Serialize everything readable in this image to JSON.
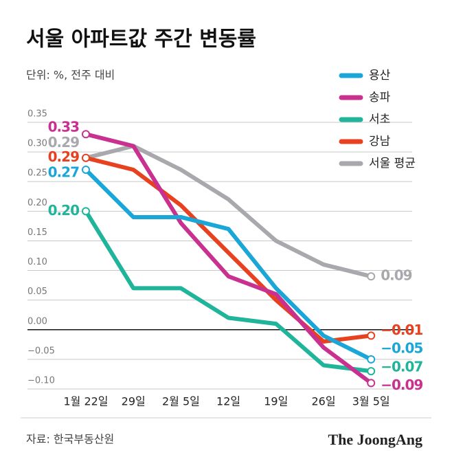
{
  "chart_data": {
    "type": "line",
    "title": "서울 아파트값 주간 변동률",
    "subtitle": "단위: %, 전주 대비",
    "source": "자료: 한국부동산원",
    "brand": "The JoongAng",
    "categories": [
      "1월 22일",
      "29일",
      "2월 5일",
      "12일",
      "19일",
      "26일",
      "3월 5일"
    ],
    "ylim": [
      -0.1,
      0.35
    ],
    "yticks": [
      {
        "value": -0.1,
        "label": "−0.10"
      },
      {
        "value": -0.05,
        "label": "−0.05"
      },
      {
        "value": 0,
        "label": "0.00"
      },
      0.05,
      {
        "value": 0.1,
        "label": "0.10"
      },
      0.15,
      {
        "value": 0.2,
        "label": "0.20"
      },
      0.25,
      {
        "value": 0.3,
        "label": "0.30"
      },
      0.35
    ],
    "grid": true,
    "legend": "top-right",
    "series": [
      {
        "name": "용산",
        "color": "#1aa7d8",
        "values": [
          0.27,
          0.19,
          0.19,
          0.17,
          0.07,
          -0.01,
          -0.05
        ],
        "value_labels": [
          "0.27",
          null,
          null,
          null,
          null,
          null,
          "−0.05"
        ]
      },
      {
        "name": "송파",
        "color": "#c8318f",
        "values": [
          0.33,
          0.31,
          0.18,
          0.09,
          0.06,
          -0.03,
          -0.09
        ],
        "value_labels": [
          "0.33",
          null,
          null,
          null,
          null,
          null,
          "−0.09"
        ]
      },
      {
        "name": "서초",
        "color": "#20b59a",
        "values": [
          0.2,
          0.07,
          0.07,
          0.02,
          0.01,
          -0.06,
          -0.07
        ],
        "value_labels": [
          "0.20",
          null,
          null,
          null,
          null,
          null,
          "−0.07"
        ]
      },
      {
        "name": "강남",
        "color": "#e8411f",
        "values": [
          0.29,
          0.27,
          0.21,
          0.13,
          0.05,
          -0.02,
          -0.01
        ],
        "value_labels": [
          "0.29",
          null,
          null,
          null,
          null,
          null,
          "−0.01"
        ]
      },
      {
        "name": "서울 평균",
        "color": "#a8a8ad",
        "values": [
          0.29,
          0.31,
          0.27,
          0.22,
          0.15,
          0.11,
          0.09
        ],
        "value_labels": [
          "0.29",
          null,
          null,
          null,
          null,
          null,
          "0.09"
        ]
      }
    ]
  }
}
